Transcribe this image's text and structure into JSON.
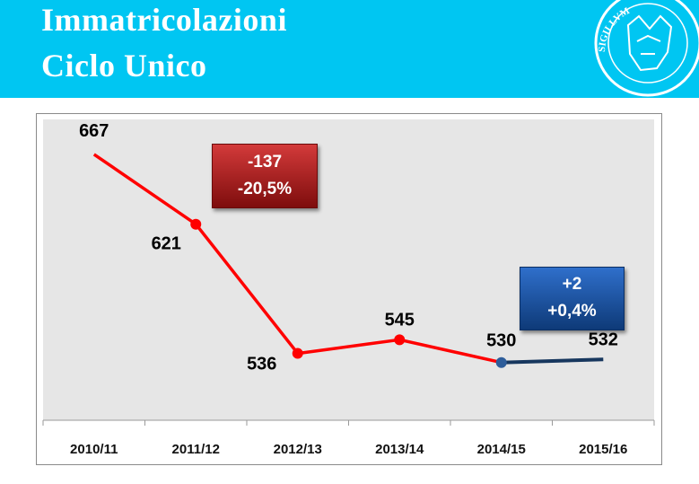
{
  "header": {
    "title_line1": "Immatricolazioni",
    "title_line2": "Ciclo Unico",
    "seal_text": "SIGILLVM",
    "colors": {
      "background": "#00c6f2",
      "text": "#ffffff"
    }
  },
  "chart_data": {
    "type": "line",
    "categories": [
      "2010/11",
      "2011/12",
      "2012/13",
      "2013/14",
      "2014/15",
      "2015/16"
    ],
    "values": [
      667,
      621,
      536,
      545,
      530,
      532
    ],
    "data_labels": [
      "667",
      "621",
      "536",
      "545",
      "530",
      "532"
    ],
    "series": [
      {
        "segment": [
          0,
          4
        ],
        "color": "#ff0000"
      },
      {
        "segment": [
          4,
          5
        ],
        "color": "#17375e"
      }
    ],
    "markers": [
      1,
      2,
      3,
      4
    ],
    "ylim": [
      492,
      690
    ],
    "title": "",
    "xlabel": "",
    "ylabel": "",
    "grid": false,
    "plot_background": "#e6e6e6"
  },
  "callouts": {
    "red": {
      "line1": "-137",
      "line2": "-20,5%",
      "color": "#a11a1a"
    },
    "blue": {
      "line1": "+2",
      "line2": "+0,4%",
      "color": "#1f4f9c"
    }
  }
}
